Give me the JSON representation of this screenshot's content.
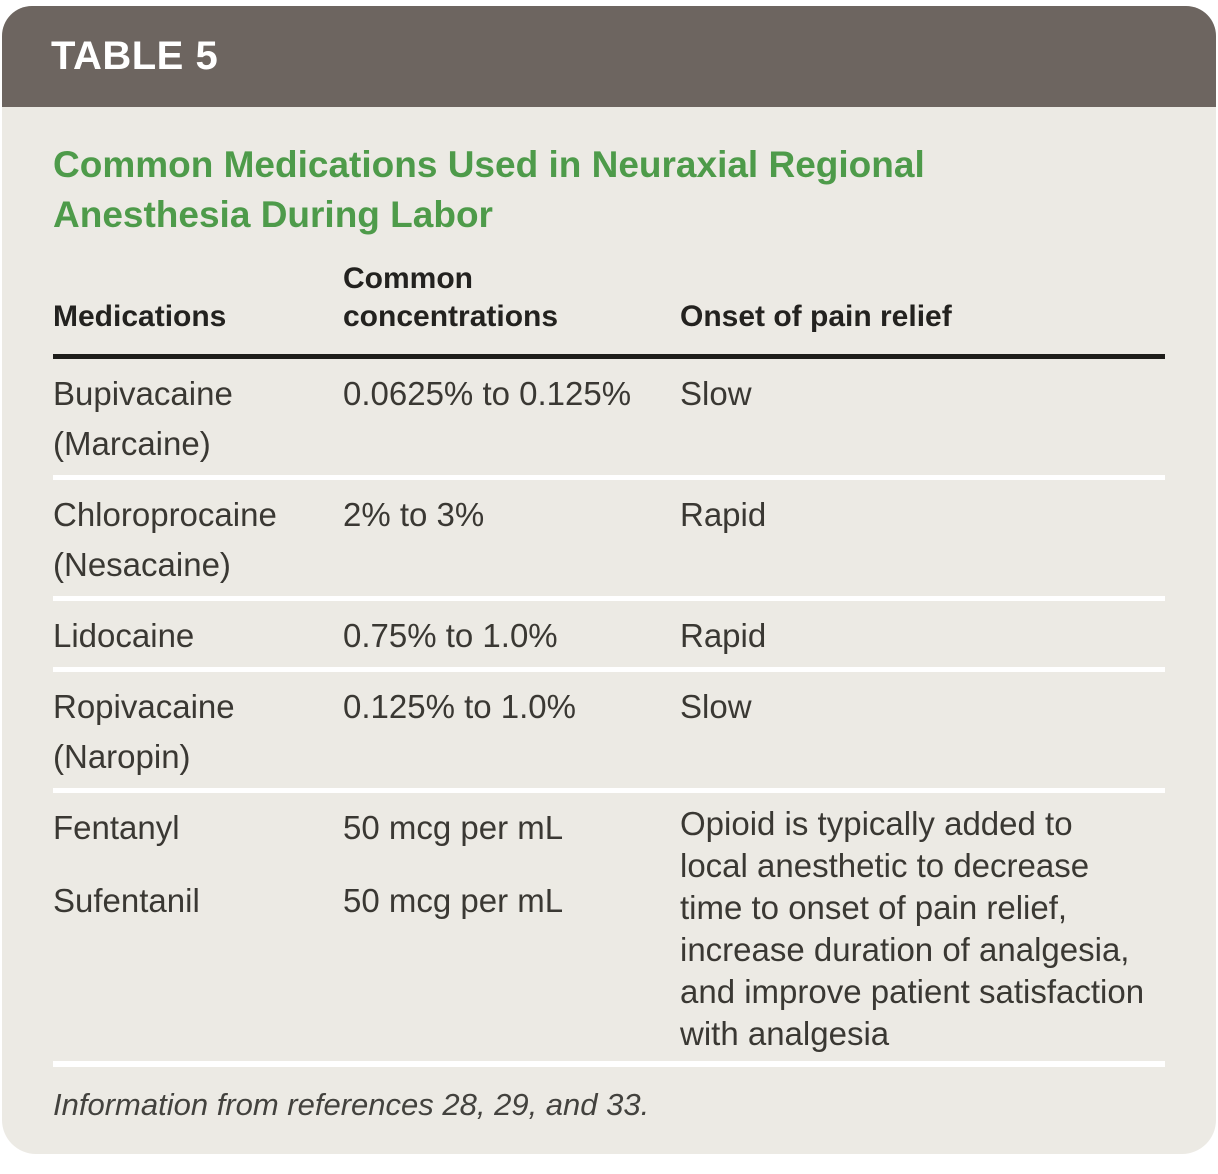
{
  "header": {
    "label": "TABLE 5",
    "title": "Common Medications Used in Neuraxial Regional Anesthesia During Labor"
  },
  "table": {
    "columns": [
      "Medications",
      "Common concentrations",
      "Onset of pain relief"
    ],
    "rows": [
      {
        "name": "Bupivacaine",
        "brand": "(Marcaine)",
        "concentration": "0.0625% to 0.125%",
        "onset": "Slow"
      },
      {
        "name": "Chloroprocaine",
        "brand": "(Nesacaine)",
        "concentration": "2% to 3%",
        "onset": "Rapid"
      },
      {
        "name": "Lidocaine",
        "brand": "",
        "concentration": "0.75% to 1.0%",
        "onset": "Rapid"
      },
      {
        "name": "Ropivacaine",
        "brand": "(Naropin)",
        "concentration": "0.125% to 1.0%",
        "onset": "Slow"
      }
    ],
    "opioid_row": {
      "medications": [
        {
          "name": "Fentanyl",
          "concentration": "50 mcg per mL"
        },
        {
          "name": "Sufentanil",
          "concentration": "50 mcg per mL"
        }
      ],
      "onset_note": "Opioid is typically added to local anesthetic to decrease time to onset of pain relief, increase duration of analgesia, and improve patient satisfaction with analgesia"
    }
  },
  "footnote": "Information from references 28, 29, and 33.",
  "colors": {
    "band_background": "#6d6560",
    "title_green": "#4e9b4a",
    "card_background": "#eceae4",
    "header_rule": "#1e1d1a",
    "row_separator": "#ffffff",
    "body_text": "#3a3833"
  }
}
